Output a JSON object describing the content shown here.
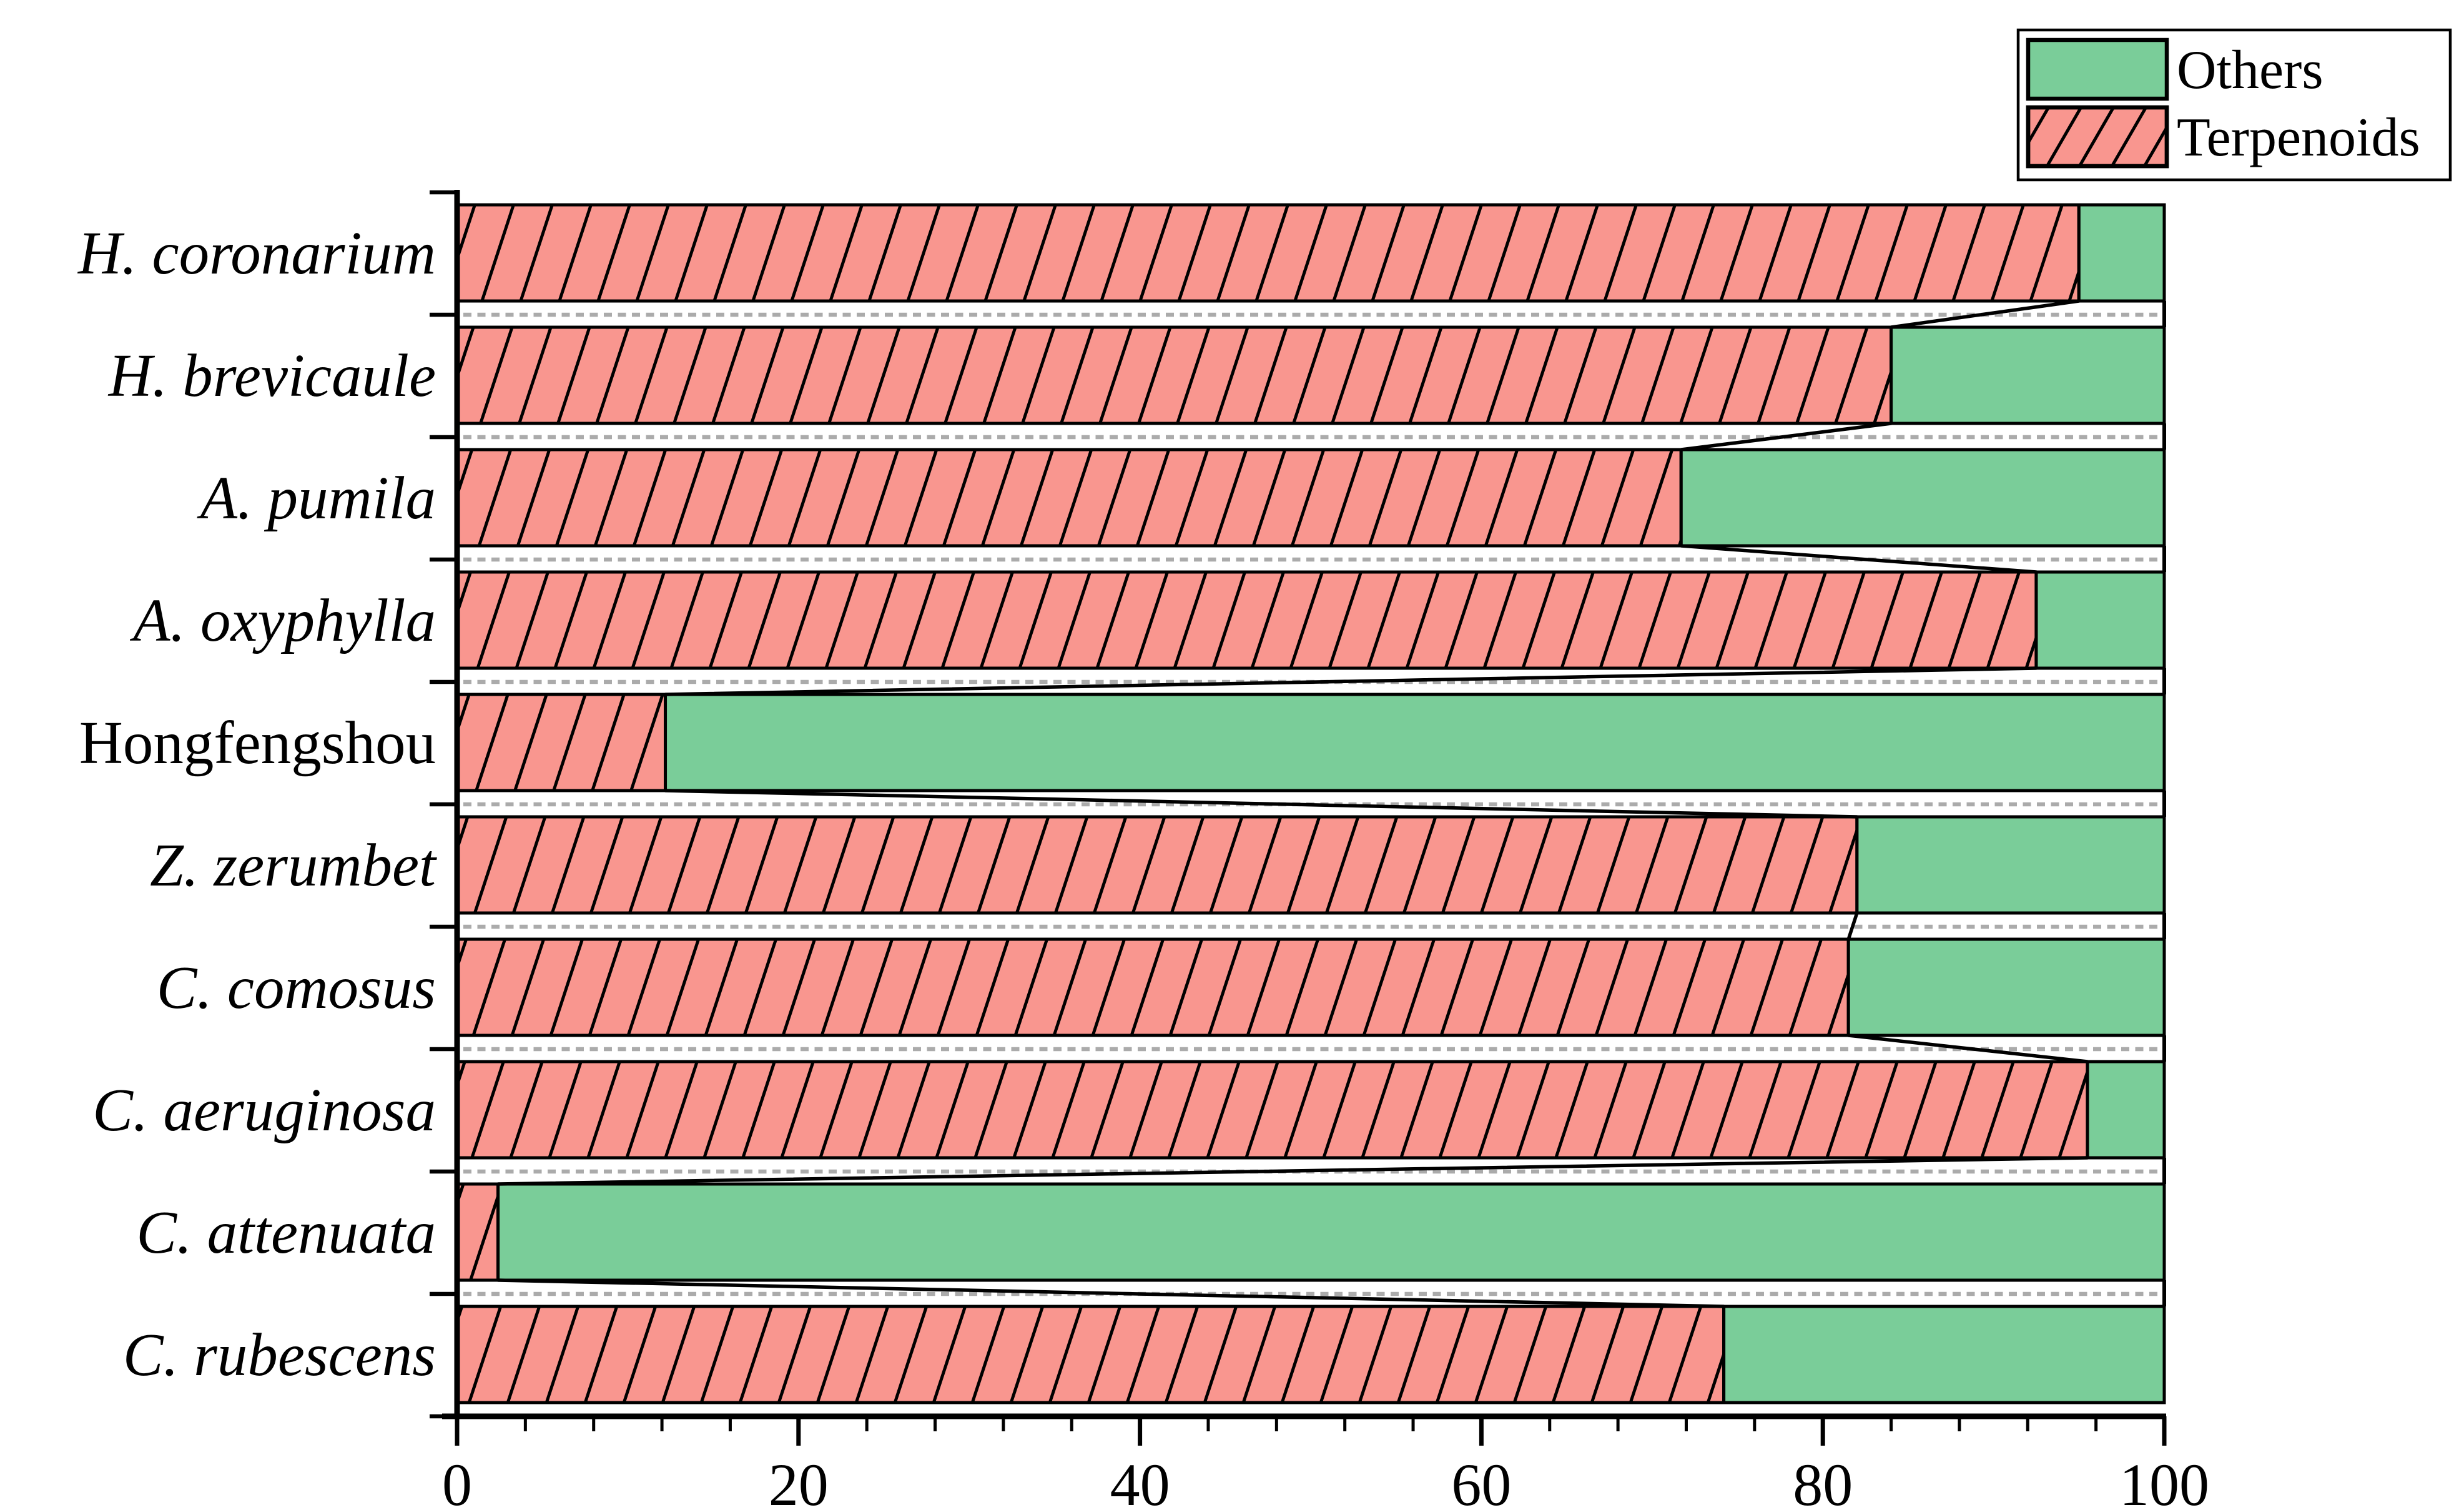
{
  "chart_data": {
    "type": "bar",
    "orientation": "horizontal",
    "stacked": true,
    "unit": "percent",
    "title": "",
    "xlabel": "",
    "ylabel": "",
    "categories": [
      {
        "label": "H. coronarium",
        "italic": true
      },
      {
        "label": "H. brevicaule",
        "italic": true
      },
      {
        "label": "A. pumila",
        "italic": true
      },
      {
        "label": "A. oxyphylla",
        "italic": true
      },
      {
        "label": "Hongfengshou",
        "italic": false
      },
      {
        "label": "Z. zerumbet",
        "italic": true
      },
      {
        "label": "C. comosus",
        "italic": true
      },
      {
        "label": "C. aeruginosa",
        "italic": true
      },
      {
        "label": "C. attenuata",
        "italic": true
      },
      {
        "label": "C. rubescens",
        "italic": true
      }
    ],
    "series": [
      {
        "name": "Terpenoids",
        "color": "#F9968F",
        "hatch": "diagonal-forward",
        "values": [
          95.0,
          84.0,
          71.7,
          92.5,
          12.2,
          82.0,
          81.5,
          95.5,
          2.4,
          74.2
        ]
      },
      {
        "name": "Others",
        "color": "#7ACD99",
        "hatch": "none",
        "values": [
          5.0,
          16.0,
          28.3,
          7.5,
          87.8,
          18.0,
          18.5,
          4.5,
          97.6,
          25.8
        ]
      }
    ],
    "x_axis": {
      "min": 0,
      "max": 100,
      "major_ticks": [
        0,
        20,
        40,
        60,
        80,
        100
      ],
      "minor_tick_step": 4
    },
    "legend": {
      "position": "top-right",
      "entries": [
        "Others",
        "Terpenoids"
      ]
    },
    "grid": {
      "category_separator_dashed": true,
      "color": "#ABABAB"
    },
    "connector_lines": true,
    "colors": {
      "terpenoids_fill": "#F9968F",
      "others_fill": "#7ACD99",
      "bar_border": "#000000",
      "hatch_line": "#000000",
      "axis": "#000000",
      "grid_dash": "#ABABAB",
      "legend_border": "#000000",
      "background": "#FFFFFF"
    }
  }
}
